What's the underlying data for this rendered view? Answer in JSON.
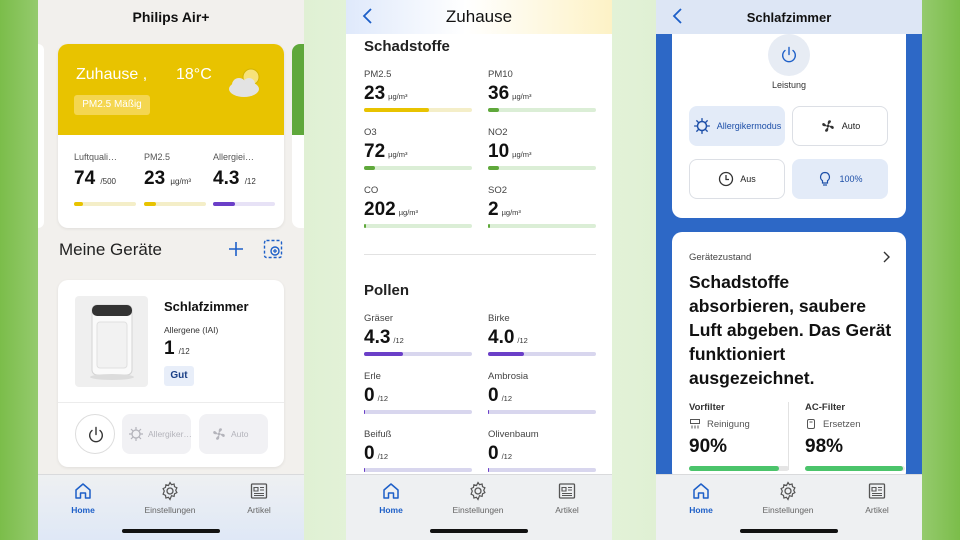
{
  "screen1": {
    "title": "Philips Air+",
    "home_card": {
      "place": "Zuhause ,",
      "temperature": "18°C",
      "badge": "PM2.5 Mäßig",
      "metrics": [
        {
          "label": "Luftquali…",
          "value": "74",
          "unit": "/500",
          "fill": 0.15,
          "color": "#e8c300"
        },
        {
          "label": "PM2.5",
          "value": "23",
          "unit": "µg/m³",
          "fill": 0.2,
          "color": "#e8c300"
        },
        {
          "label": "Allergiei…",
          "value": "4.3",
          "unit": "/12",
          "fill": 0.36,
          "color": "#6b3fc8"
        }
      ]
    },
    "section_title": "Meine Geräte",
    "device": {
      "name": "Schlafzimmer",
      "subtitle": "Allergene (IAI)",
      "value": "1",
      "unit": "/12",
      "badge": "Gut",
      "mode_allergy": "Allergiker…",
      "mode_auto": "Auto"
    }
  },
  "screen2": {
    "title": "Zuhause",
    "pollutants_title": "Schadstoffe",
    "pollutants": [
      {
        "label": "PM2.5",
        "value": "23",
        "unit": "µg/m³",
        "fill": 0.6,
        "color": "#e8c300"
      },
      {
        "label": "PM10",
        "value": "36",
        "unit": "µg/m³",
        "fill": 0.1,
        "color": "#5fa83b"
      },
      {
        "label": "O3",
        "value": "72",
        "unit": "µg/m³",
        "fill": 0.1,
        "color": "#5fa83b"
      },
      {
        "label": "NO2",
        "value": "10",
        "unit": "µg/m³",
        "fill": 0.1,
        "color": "#5fa83b"
      },
      {
        "label": "CO",
        "value": "202",
        "unit": "µg/m³",
        "fill": 0.01,
        "color": "#5fa83b"
      },
      {
        "label": "SO2",
        "value": "2",
        "unit": "µg/m³",
        "fill": 0.01,
        "color": "#5fa83b"
      }
    ],
    "pollen_title": "Pollen",
    "pollen": [
      {
        "label": "Gräser",
        "value": "4.3",
        "unit": "/12",
        "fill": 0.36,
        "color": "#6b3fc8"
      },
      {
        "label": "Birke",
        "value": "4.0",
        "unit": "/12",
        "fill": 0.33,
        "color": "#6b3fc8"
      },
      {
        "label": "Erle",
        "value": "0",
        "unit": "/12",
        "fill": 0,
        "color": "#6b3fc8"
      },
      {
        "label": "Ambrosia",
        "value": "0",
        "unit": "/12",
        "fill": 0,
        "color": "#6b3fc8"
      },
      {
        "label": "Beifuß",
        "value": "0",
        "unit": "/12",
        "fill": 0,
        "color": "#6b3fc8"
      },
      {
        "label": "Olivenbaum",
        "value": "0",
        "unit": "/12",
        "fill": 0,
        "color": "#6b3fc8"
      }
    ]
  },
  "screen3": {
    "title": "Schlafzimmer",
    "power_label": "Leistung",
    "btn_allergy": "Allergikermodus",
    "btn_auto": "Auto",
    "btn_timer": "Aus",
    "btn_light": "100%",
    "state_label": "Gerätezustand",
    "state_text": "Schadstoffe absorbieren, saubere Luft abgeben. Das Gerät funktioniert ausgezeichnet.",
    "filter1": {
      "title": "Vorfilter",
      "action": "Reinigung",
      "value": "90%",
      "fill": 0.9
    },
    "filter2": {
      "title": "AC-Filter",
      "action": "Ersetzen",
      "value": "98%",
      "fill": 0.98
    }
  },
  "nav": {
    "home": "Home",
    "settings": "Einstellungen",
    "articles": "Artikel"
  },
  "colors": {
    "accent": "#1d5fc8",
    "yellow": "#e8c300",
    "green": "#4bc46b",
    "purple": "#6b3fc8"
  }
}
